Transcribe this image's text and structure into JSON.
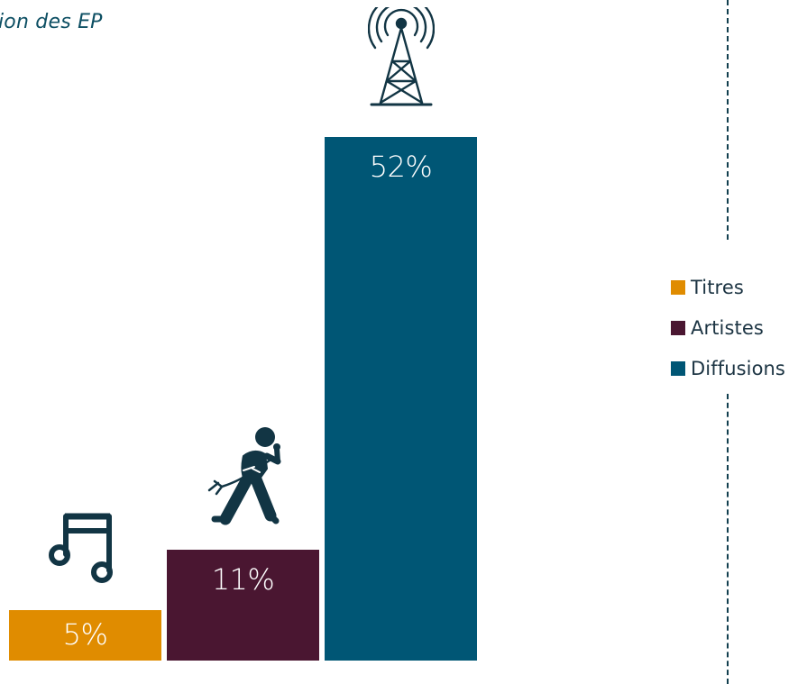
{
  "subtitle": "ion des EP",
  "colors": {
    "titres": "#e08c00",
    "artistes": "#4a1631",
    "diffusions": "#005675",
    "icon": "#123544"
  },
  "chart_data": {
    "type": "bar",
    "title": "",
    "xlabel": "",
    "ylabel": "",
    "ylim": [
      0,
      60
    ],
    "legend_position": "right",
    "categories": [
      "Titres",
      "Artistes",
      "Diffusions"
    ],
    "values": [
      5,
      11,
      52
    ],
    "data_labels": [
      "5%",
      "11%",
      "52%"
    ],
    "icons": [
      "music-note-icon",
      "guitarist-icon",
      "radio-tower-icon"
    ]
  },
  "legend": [
    {
      "label": "Titres"
    },
    {
      "label": "Artistes"
    },
    {
      "label": "Diffusions"
    }
  ]
}
